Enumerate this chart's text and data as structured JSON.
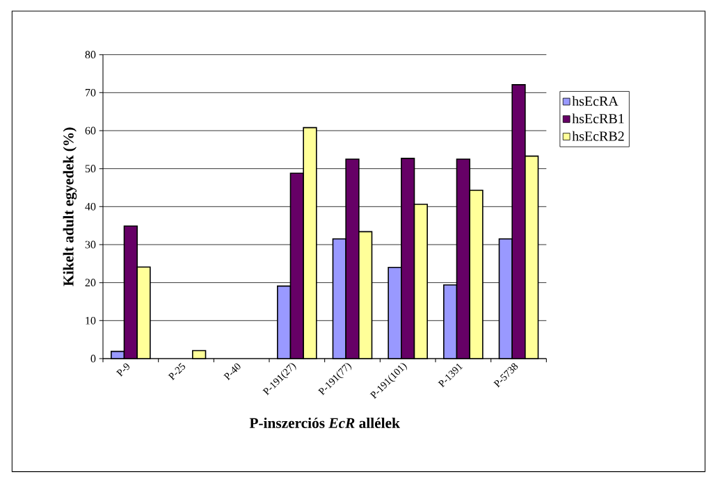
{
  "chart_data": {
    "type": "bar",
    "xlabel": "P-inszerciós *EcR* allélek",
    "ylabel": "Kikelt adult egyedek (%)",
    "categories": [
      "P-9",
      "P-25",
      "P-40",
      "P-191(27)",
      "P-191(77)",
      "P-191(101)",
      "P-1391",
      "P-5738"
    ],
    "series": [
      {
        "name": "hsEcRA",
        "color": "#9999ff",
        "values": [
          1.9,
          null,
          null,
          19.1,
          31.5,
          24.0,
          19.4,
          31.5
        ]
      },
      {
        "name": "hsEcRB1",
        "color": "#660066",
        "values": [
          34.9,
          null,
          null,
          48.8,
          52.5,
          52.7,
          52.5,
          72.1
        ]
      },
      {
        "name": "hsEcRB2",
        "color": "#ffff99",
        "values": [
          24.1,
          2.1,
          null,
          60.8,
          33.4,
          40.6,
          44.3,
          53.3
        ]
      }
    ],
    "ylim": [
      0,
      80
    ],
    "yticks": [
      0,
      10,
      20,
      30,
      40,
      50,
      60,
      70,
      80
    ],
    "grid": "y",
    "legend": "right"
  }
}
